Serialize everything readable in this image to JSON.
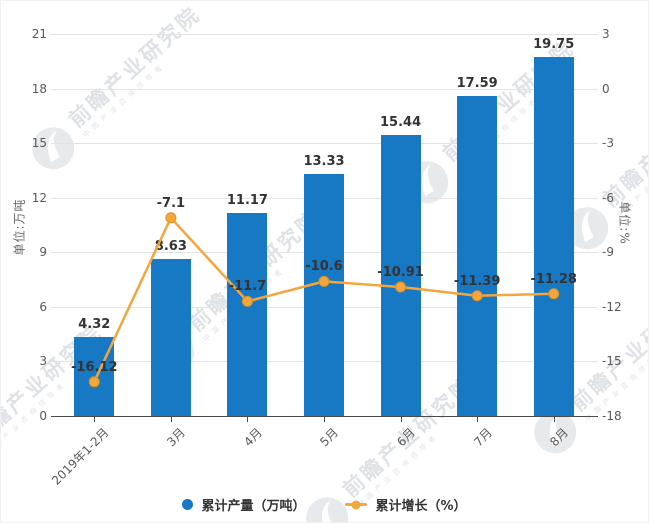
{
  "chart_data": {
    "type": "bar+line",
    "categories": [
      "2019年1-2月",
      "3月",
      "4月",
      "5月",
      "6月",
      "7月",
      "8月"
    ],
    "series": [
      {
        "name": "累计产量（万吨）",
        "type": "bar",
        "axis": "left",
        "color": "#1778c4",
        "values": [
          4.32,
          8.63,
          11.17,
          13.33,
          15.44,
          17.59,
          19.75
        ]
      },
      {
        "name": "累计增长（%）",
        "type": "line",
        "axis": "right",
        "color": "#f4a63c",
        "marker_edge_color": "#e0921c",
        "values": [
          -16.12,
          -7.1,
          -11.7,
          -10.6,
          -10.91,
          -11.39,
          -11.28
        ]
      }
    ],
    "left_axis": {
      "name": "单位:万吨",
      "min": 0,
      "max": 21,
      "ticks": [
        21,
        18,
        15,
        12,
        9,
        6,
        3,
        0
      ]
    },
    "right_axis": {
      "name": "单位:%",
      "min": -18,
      "max": 3,
      "ticks": [
        3,
        0,
        -3,
        -6,
        -9,
        -12,
        -15,
        -18
      ]
    },
    "grid": true,
    "legend_position": "bottom",
    "title": ""
  },
  "legend": {
    "items": [
      {
        "label": "累计产量（万吨）",
        "marker": "circle",
        "color": "#1778c4"
      },
      {
        "label": "累计增长（%）",
        "marker": "line-dot",
        "color": "#f4a63c"
      }
    ]
  },
  "watermark": {
    "text": "前瞻产业研究院",
    "subtext": "中国产业咨询领导者"
  },
  "colors": {
    "bar": "#1778c4",
    "line": "#f4a63c",
    "gridline": "#e3e3e3",
    "axis_line": "#4a4a4a",
    "tick_text": "#595959",
    "data_label": "#333333"
  }
}
